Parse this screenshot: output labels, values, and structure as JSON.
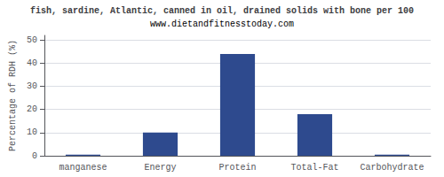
{
  "chart_data": {
    "type": "bar",
    "title": "fish, sardine, Atlantic, canned in oil, drained solids with bone per 100",
    "subtitle": "www.dietandfitnesstoday.com",
    "categories": [
      "manganese",
      "Energy",
      "Protein",
      "Total-Fat",
      "Carbohydrate"
    ],
    "values": [
      0.5,
      10,
      44,
      18,
      0.5
    ],
    "color": "#2e4a8e",
    "ylabel": "Percentage of RDH (%)",
    "ylim": [
      0,
      52
    ],
    "yticks": [
      0,
      10,
      20,
      30,
      40,
      50
    ],
    "grid": true
  }
}
